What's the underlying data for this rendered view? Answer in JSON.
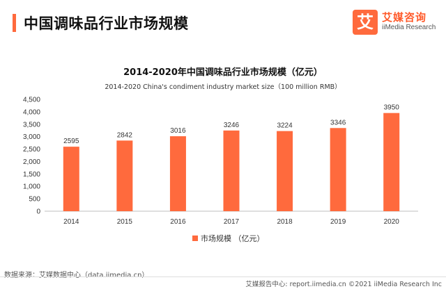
{
  "header": {
    "title": "中国调味品行业市场规模"
  },
  "logo": {
    "mark": "艾",
    "name_cn": "艾媒咨询",
    "name_en": "iiMedia Research"
  },
  "chart_data": {
    "type": "bar",
    "title": "2014-2020年中国调味品行业市场规模（亿元）",
    "subtitle": "2014-2020 China's condiment industry market size（100 million RMB）",
    "categories": [
      "2014",
      "2015",
      "2016",
      "2017",
      "2018",
      "2019",
      "2020"
    ],
    "series": [
      {
        "name": "市场规模 （亿元）",
        "values": [
          2595,
          2842,
          3016,
          3246,
          3224,
          3346,
          3950
        ],
        "color": "#ff6a3d"
      }
    ],
    "data_labels": [
      "2595",
      "2842",
      "3016",
      "3246",
      "3224",
      "3346",
      "3950"
    ],
    "ylim": [
      0,
      4500
    ],
    "yticks": [
      0,
      500,
      1000,
      1500,
      2000,
      2500,
      3000,
      3500,
      4000,
      4500
    ],
    "ytick_labels": [
      "0",
      "500",
      "1,000",
      "1,500",
      "2,000",
      "2,500",
      "3,000",
      "3,500",
      "4,000",
      "4,500"
    ],
    "xlabel": "",
    "ylabel": "",
    "grid": false,
    "legend_position": "bottom-center"
  },
  "footer": {
    "source": "数据来源：艾媒数据中心（data.iimedia.cn）",
    "right": "艾媒报告中心: report.iimedia.cn ©2021 iiMedia Research Inc"
  }
}
